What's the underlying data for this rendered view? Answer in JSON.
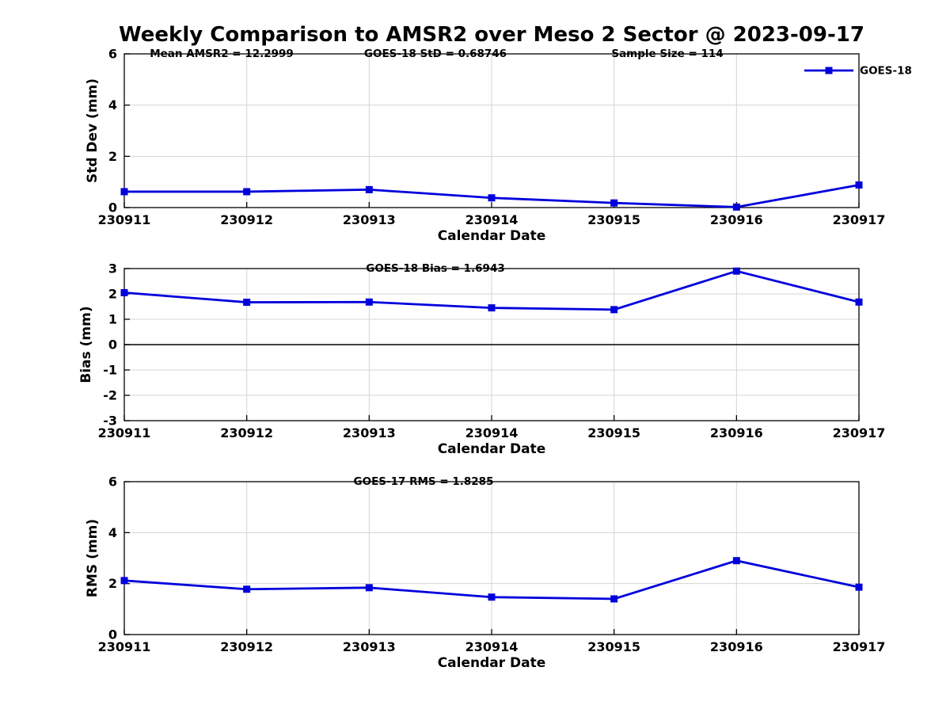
{
  "figure": {
    "title": "Weekly Comparison to AMSR2 over Meso 2 Sector @ 2023-09-17",
    "colors": {
      "line": "#0000dd",
      "grid": "#d4d4d4",
      "axis": "#000000",
      "zero_line": "#000000",
      "background": "#ffffff",
      "text": "#000000"
    },
    "legend": {
      "label": "GOES-18",
      "marker": "filled-square",
      "location": "top-right"
    }
  },
  "chart_data": [
    {
      "type": "line",
      "ylabel": "Std Dev (mm)",
      "xlabel": "Calendar Date",
      "annotations": [
        "Mean AMSR2 = 12.2999",
        "GOES-18 StD = 0.68746",
        "Sample Size = 114"
      ],
      "categories": [
        "230911",
        "230912",
        "230913",
        "230914",
        "230915",
        "230916",
        "230917"
      ],
      "series": [
        {
          "name": "GOES-18",
          "values": [
            0.62,
            0.62,
            0.7,
            0.38,
            0.18,
            0.02,
            0.88
          ]
        }
      ],
      "ylim": [
        0,
        6
      ],
      "yticks": [
        0,
        2,
        4,
        6
      ],
      "grid": true,
      "zero_line": false,
      "legend_visible": true
    },
    {
      "type": "line",
      "ylabel": "Bias (mm)",
      "xlabel": "Calendar Date",
      "annotations": [
        "GOES-18 Bias  = 1.6943"
      ],
      "categories": [
        "230911",
        "230912",
        "230913",
        "230914",
        "230915",
        "230916",
        "230917"
      ],
      "series": [
        {
          "name": "GOES-18",
          "values": [
            2.05,
            1.67,
            1.68,
            1.45,
            1.38,
            2.9,
            1.68
          ]
        }
      ],
      "ylim": [
        -3,
        3
      ],
      "yticks": [
        -3,
        -2,
        -1,
        0,
        1,
        2,
        3
      ],
      "grid": true,
      "zero_line": true,
      "legend_visible": false
    },
    {
      "type": "line",
      "ylabel": "RMS (mm)",
      "xlabel": "Calendar Date",
      "annotations": [
        "GOES-17 RMS = 1.8285"
      ],
      "categories": [
        "230911",
        "230912",
        "230913",
        "230914",
        "230915",
        "230916",
        "230917"
      ],
      "series": [
        {
          "name": "GOES-18",
          "values": [
            2.12,
            1.78,
            1.84,
            1.47,
            1.4,
            2.9,
            1.86
          ]
        }
      ],
      "ylim": [
        0,
        6
      ],
      "yticks": [
        0,
        2,
        4,
        6
      ],
      "grid": true,
      "zero_line": false,
      "legend_visible": false
    }
  ]
}
